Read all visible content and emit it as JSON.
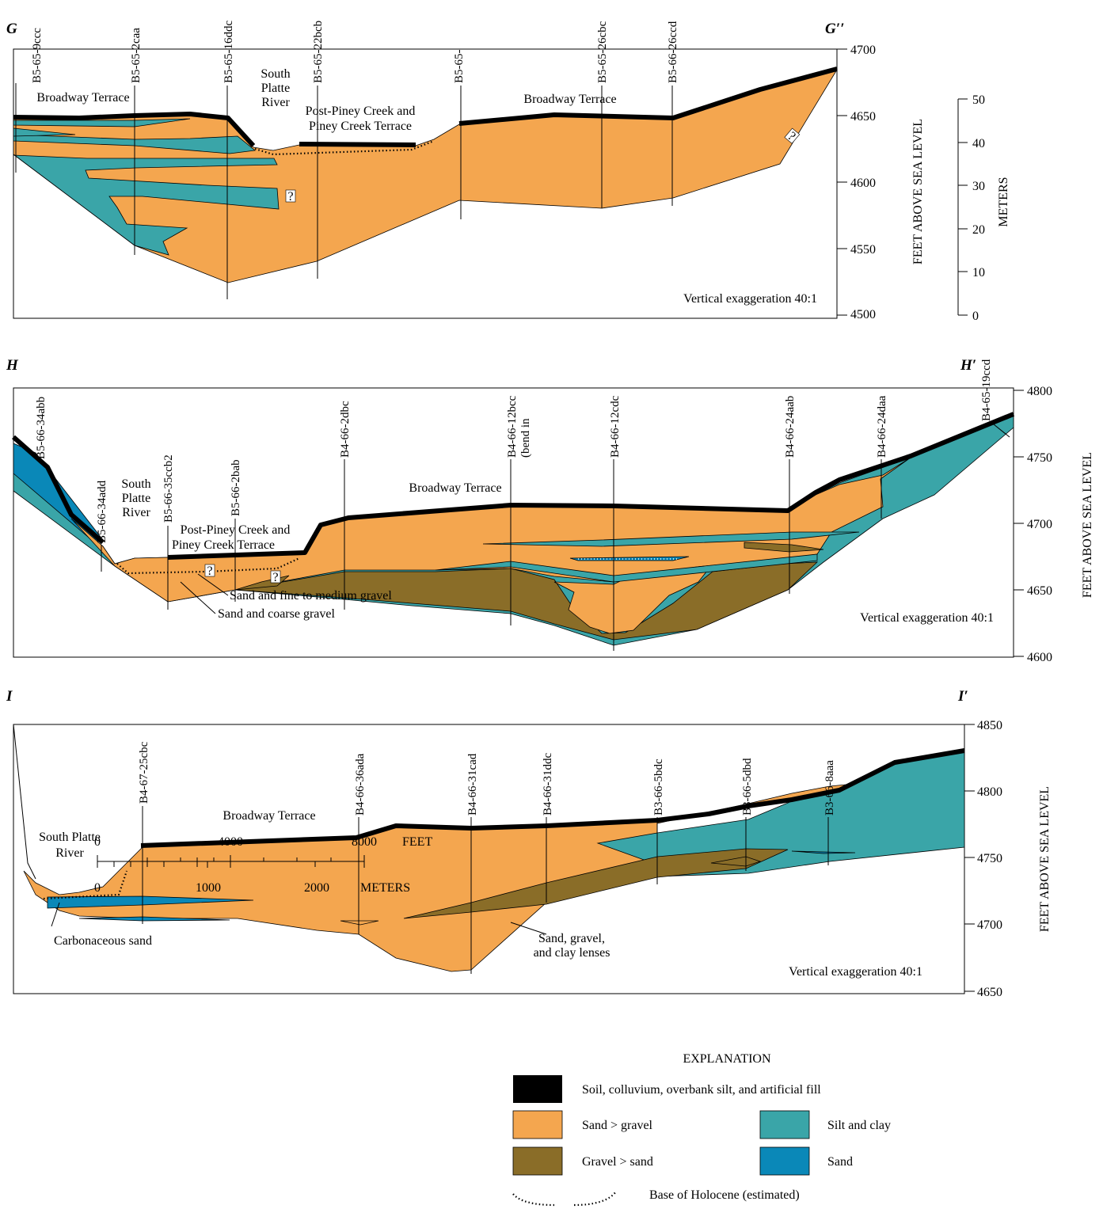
{
  "sections": [
    {
      "label_left": "G",
      "label_right": "G′′",
      "wells": [
        "B5-65-9ccc",
        "B5-65-2caa",
        "B5-65-16ddc",
        "B5-65-22bcb",
        "B5-65-",
        "B5-65-26cbc",
        "B5-66-26ccd"
      ],
      "annotations": [
        "Broadway Terrace",
        "South",
        "Platte",
        "River",
        "Post-Piney Creek and",
        "Piney Creek Terrace",
        "Broadway Terrace",
        "Vertical exaggeration 40:1"
      ],
      "question_marks": [
        "?",
        "?"
      ],
      "axis_title": "FEET  ABOVE  SEA  LEVEL",
      "axis_ticks": [
        4700,
        4650,
        4600,
        4550,
        4500
      ],
      "meters_title": "METERS",
      "meters_ticks": [
        50,
        40,
        30,
        20,
        10,
        0
      ]
    },
    {
      "label_left": "H",
      "label_right": "H′",
      "wells": [
        "B5-66-34abb",
        "B5-66-34add",
        "B5-66-35ccb2",
        "B5-66-2bab",
        "B4-66-2dbc",
        "B4-66-12bcc",
        "(bend in",
        "B4-66-12cdc",
        "B4-66-24aab",
        "B4-66-24daa",
        "B4-65-19ccd"
      ],
      "annotations": [
        "Broadway Terrace",
        "South",
        "Platte",
        "River",
        "Post-Piney Creek and",
        "Piney Creek Terrace",
        "Sand  and  fine  to  medium  gravel",
        "Sand  and  coarse  gravel",
        "Vertical exaggeration 40:1"
      ],
      "question_marks": [
        "?",
        "?"
      ],
      "axis_title": "FEET  ABOVE  SEA  LEVEL",
      "axis_ticks": [
        4800,
        4750,
        4700,
        4650,
        4600
      ]
    },
    {
      "label_left": "I",
      "label_right": "I′",
      "wells": [
        "B4-67-25cbc",
        "B4-66-36ada",
        "B4-66-31cad",
        "B4-66-31ddc",
        "B3-66-5bdc",
        "B3-66-5dbd",
        "B3-66-8aaa"
      ],
      "annotations": [
        "Broadway Terrace",
        "South  Platte",
        "River",
        "Carbonaceous sand",
        "Sand, gravel,",
        "and clay lenses",
        "Vertical exaggeration 40:1"
      ],
      "axis_title": "FEET  ABOVE  SEA  LEVEL",
      "axis_ticks": [
        4850,
        4800,
        4750,
        4700,
        4650
      ]
    }
  ],
  "scale_bar": {
    "feet_ticks": [
      0,
      4000,
      8000
    ],
    "feet_unit": "FEET",
    "meter_ticks": [
      0,
      1000,
      2000
    ],
    "meter_unit": "METERS"
  },
  "explanation": {
    "title": "EXPLANATION",
    "items": [
      "Soil, colluvium, overbank silt, and artificial fill",
      "Sand > gravel",
      "Gravel  >  sand",
      "Silt and clay",
      "Sand",
      "Base of  Holocene (estimated)"
    ]
  }
}
